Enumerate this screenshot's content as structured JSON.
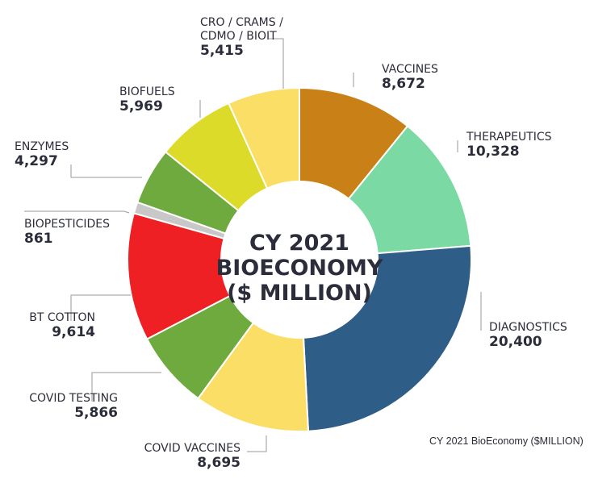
{
  "chart_data": {
    "type": "pie",
    "variant": "donut",
    "title_lines": [
      "CY 2021",
      "BIOECONOMY",
      "($ MILLION)"
    ],
    "caption": "CY 2021 BioEconomy ($MILLION)",
    "slices": [
      {
        "label_lines": [
          "VACCINES"
        ],
        "value_label": "8,672",
        "value": 8672,
        "color": "#C98016"
      },
      {
        "label_lines": [
          "THERAPEUTICS"
        ],
        "value_label": "10,328",
        "value": 10328,
        "color": "#7BD9A4"
      },
      {
        "label_lines": [
          "DIAGNOSTICS"
        ],
        "value_label": "20,400",
        "value": 20400,
        "color": "#2E5E87"
      },
      {
        "label_lines": [
          "COVID VACCINES"
        ],
        "value_label": "8,695",
        "value": 8695,
        "color": "#FBDE66"
      },
      {
        "label_lines": [
          "COVID TESTING"
        ],
        "value_label": "5,866",
        "value": 5866,
        "color": "#6FAA3F"
      },
      {
        "label_lines": [
          "BT COTTON"
        ],
        "value_label": "9,614",
        "value": 9614,
        "color": "#EE2024"
      },
      {
        "label_lines": [
          "BIOPESTICIDES"
        ],
        "value_label": "861",
        "value": 861,
        "color": "#C8C8C8"
      },
      {
        "label_lines": [
          "ENZYMES"
        ],
        "value_label": "4,297",
        "value": 4297,
        "color": "#6FAA3F"
      },
      {
        "label_lines": [
          "BIOFUELS"
        ],
        "value_label": "5,969",
        "value": 5969,
        "color": "#DCDB2A"
      },
      {
        "label_lines": [
          "CRO / CRAMS /",
          "CDMO / BIOIT"
        ],
        "value_label": "5,415",
        "value": 5415,
        "color": "#FBDE66"
      }
    ]
  }
}
